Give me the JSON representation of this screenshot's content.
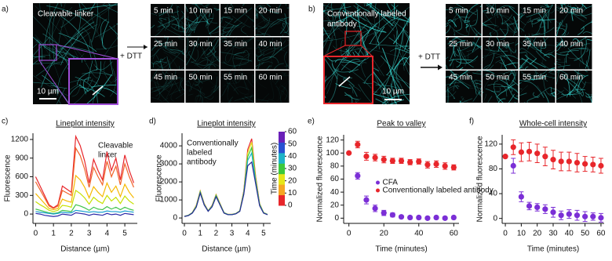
{
  "panel_a": {
    "label": "a)",
    "image_label": "Cleavable linker",
    "scale_bar": "10 µm",
    "treatment": "+ DTT",
    "times": [
      "5 min",
      "10 min",
      "15 min",
      "20 min",
      "25 min",
      "30 min",
      "35 min",
      "40 min",
      "45 min",
      "50 min",
      "55 min",
      "60 min"
    ]
  },
  "panel_b": {
    "label": "b)",
    "image_label": [
      "Conventionally labeled",
      "antibody"
    ],
    "scale_bar": "10 µm",
    "treatment": "+ DTT",
    "times": [
      "5 min",
      "10 min",
      "15 min",
      "20 min",
      "25 min",
      "30 min",
      "35 min",
      "40 min",
      "45 min",
      "50 min",
      "55 min",
      "60 min"
    ]
  },
  "chart_data": [
    {
      "type": "line",
      "panel_label": "c)",
      "title": "Lineplot intensity",
      "annotation": [
        "Cleavable",
        "linker"
      ],
      "xlabel": "Distance (µm)",
      "ylabel": "Fluorescence",
      "x": [
        0,
        0.25,
        0.5,
        0.75,
        1,
        1.25,
        1.5,
        1.75,
        2,
        2.25,
        2.5,
        2.75,
        3,
        3.25,
        3.5,
        3.75,
        4,
        4.25,
        4.5,
        4.75,
        5,
        5.25,
        5.5
      ],
      "xlim": [
        -0.15,
        5.7
      ],
      "xticks": [
        0,
        1,
        2,
        3,
        4,
        5
      ],
      "ylim": [
        -150,
        1300
      ],
      "yticks": [
        0,
        300,
        600,
        900,
        1200
      ],
      "series": [
        {
          "color": "#e8262b",
          "values": [
            600,
            450,
            300,
            150,
            100,
            150,
            450,
            400,
            350,
            1250,
            1100,
            850,
            500,
            880,
            700,
            550,
            1000,
            700,
            900,
            550,
            950,
            700,
            500
          ]
        },
        {
          "color": "#f0642a",
          "values": [
            520,
            390,
            260,
            130,
            90,
            130,
            380,
            340,
            300,
            1060,
            940,
            720,
            430,
            750,
            600,
            470,
            850,
            600,
            770,
            470,
            810,
            600,
            430
          ]
        },
        {
          "color": "#f5b800",
          "values": [
            330,
            250,
            170,
            90,
            70,
            90,
            240,
            210,
            190,
            620,
            550,
            430,
            260,
            440,
            350,
            280,
            500,
            350,
            450,
            280,
            480,
            350,
            260
          ]
        },
        {
          "color": "#c6e000",
          "values": [
            200,
            150,
            110,
            60,
            40,
            60,
            140,
            130,
            110,
            380,
            330,
            260,
            160,
            270,
            210,
            170,
            300,
            210,
            270,
            170,
            290,
            210,
            160
          ]
        },
        {
          "color": "#3ec44a",
          "values": [
            80,
            60,
            40,
            20,
            10,
            20,
            60,
            50,
            40,
            150,
            130,
            100,
            60,
            110,
            80,
            70,
            120,
            80,
            110,
            70,
            110,
            80,
            60
          ]
        },
        {
          "color": "#1aa0d0",
          "values": [
            40,
            30,
            20,
            10,
            0,
            10,
            30,
            20,
            20,
            60,
            50,
            40,
            30,
            40,
            30,
            30,
            50,
            40,
            40,
            30,
            50,
            40,
            30
          ]
        },
        {
          "color": "#2a2aa8",
          "values": [
            10,
            0,
            -20,
            -30,
            -40,
            -30,
            0,
            -10,
            -20,
            20,
            10,
            0,
            -20,
            0,
            -10,
            -20,
            10,
            -10,
            0,
            -20,
            10,
            0,
            -10
          ]
        }
      ]
    },
    {
      "type": "line",
      "panel_label": "d)",
      "title": "Lineplot intensity",
      "annotation": [
        "Conventionally",
        "labeled",
        "antibody"
      ],
      "xlabel": "Distance (µm)",
      "ylabel": "Fluorescence",
      "x": [
        0,
        0.25,
        0.5,
        0.75,
        1,
        1.25,
        1.5,
        1.75,
        2,
        2.25,
        2.5,
        2.75,
        3,
        3.25,
        3.5,
        3.75,
        4,
        4.25,
        4.5,
        4.75,
        5,
        5.25
      ],
      "xlim": [
        -0.15,
        5.45
      ],
      "xticks": [
        0,
        1,
        2,
        3,
        4,
        5
      ],
      "ylim": [
        -300,
        4700
      ],
      "yticks": [
        0,
        1000,
        2000,
        3000,
        4000
      ],
      "colorbar": {
        "label": "Time (minutes)",
        "lim": [
          0,
          60
        ],
        "ticks": [
          0,
          10,
          20,
          30,
          40,
          50,
          60
        ],
        "colors": [
          "#e8262b",
          "#f5a623",
          "#e6e619",
          "#3cc83c",
          "#1eb4c8",
          "#2850d2",
          "#6a1fb8"
        ]
      },
      "series": [
        {
          "color": "#e8262b",
          "values": [
            100,
            150,
            300,
            700,
            1500,
            800,
            400,
            700,
            1300,
            800,
            300,
            200,
            200,
            250,
            400,
            1500,
            3800,
            4400,
            2300,
            800,
            300,
            200
          ]
        },
        {
          "color": "#e6e619",
          "values": [
            100,
            150,
            300,
            680,
            1480,
            780,
            400,
            680,
            1280,
            780,
            300,
            200,
            200,
            250,
            400,
            1450,
            3600,
            4200,
            2200,
            780,
            300,
            200
          ]
        },
        {
          "color": "#3cc83c",
          "values": [
            90,
            140,
            290,
            650,
            1450,
            760,
            390,
            660,
            1250,
            760,
            290,
            190,
            190,
            240,
            390,
            1400,
            3400,
            3900,
            2100,
            750,
            290,
            190
          ]
        },
        {
          "color": "#1eb4c8",
          "values": [
            90,
            140,
            280,
            620,
            1400,
            740,
            380,
            640,
            1200,
            740,
            280,
            190,
            190,
            240,
            380,
            1350,
            3200,
            3600,
            2000,
            720,
            280,
            190
          ]
        },
        {
          "color": "#2a2a90",
          "values": [
            80,
            130,
            270,
            600,
            1380,
            720,
            370,
            620,
            1180,
            720,
            270,
            180,
            180,
            230,
            370,
            1300,
            2900,
            3100,
            1900,
            680,
            270,
            180
          ]
        }
      ]
    },
    {
      "type": "scatter",
      "panel_label": "e)",
      "title": "Peak to valley",
      "xlabel": "Time (minutes)",
      "ylabel": "Normalized fluorescence",
      "legend": "lower-center",
      "xlim": [
        -3,
        63
      ],
      "xticks": [
        0,
        20,
        40,
        60
      ],
      "ylim": [
        -8,
        128
      ],
      "yticks": [
        0,
        20,
        40,
        60,
        80,
        100,
        120
      ],
      "series": [
        {
          "name": "CFA",
          "color": "#7b2fd6",
          "x": [
            5,
            10,
            15,
            20,
            25,
            30,
            35,
            40,
            45,
            50,
            55,
            60
          ],
          "values": [
            65,
            28,
            15,
            8,
            5,
            2,
            1,
            1,
            0,
            1,
            0,
            1
          ],
          "errors": [
            5,
            6,
            5,
            4,
            3,
            2,
            2,
            2,
            2,
            2,
            2,
            2
          ]
        },
        {
          "name": "Conventionally labeled antibody",
          "color": "#e8262b",
          "x": [
            0,
            5,
            10,
            15,
            20,
            25,
            30,
            35,
            40,
            45,
            50,
            55,
            60
          ],
          "values": [
            100,
            113,
            95,
            93,
            90,
            88,
            88,
            86,
            87,
            82,
            83,
            80,
            78
          ],
          "errors": [
            0,
            5,
            6,
            5,
            5,
            4,
            4,
            4,
            4,
            5,
            5,
            5,
            4
          ]
        }
      ]
    },
    {
      "type": "scatter",
      "panel_label": "f)",
      "title": "Whole-cell intensity",
      "xlabel": "Time (minutes)",
      "ylabel": "Normalized fluorescence",
      "xlim": [
        -2,
        62
      ],
      "xticks": [
        0,
        10,
        20,
        30,
        40,
        50,
        60
      ],
      "ylim": [
        -8,
        135
      ],
      "yticks": [
        0,
        40,
        80,
        120
      ],
      "series": [
        {
          "color": "#7b2fd6",
          "x": [
            5,
            10,
            15,
            20,
            25,
            30,
            35,
            40,
            45,
            50,
            55,
            60
          ],
          "values": [
            85,
            35,
            20,
            18,
            15,
            10,
            5,
            7,
            5,
            3,
            3,
            1
          ],
          "errors": [
            12,
            8,
            6,
            6,
            7,
            8,
            7,
            7,
            8,
            8,
            6,
            7
          ]
        },
        {
          "color": "#e8262b",
          "x": [
            0,
            5,
            10,
            15,
            20,
            25,
            30,
            35,
            40,
            45,
            50,
            55,
            60
          ],
          "values": [
            100,
            115,
            107,
            108,
            105,
            100,
            95,
            92,
            92,
            90,
            88,
            87,
            85
          ],
          "errors": [
            0,
            12,
            15,
            15,
            15,
            15,
            15,
            15,
            15,
            15,
            12,
            12,
            12
          ]
        }
      ]
    }
  ]
}
